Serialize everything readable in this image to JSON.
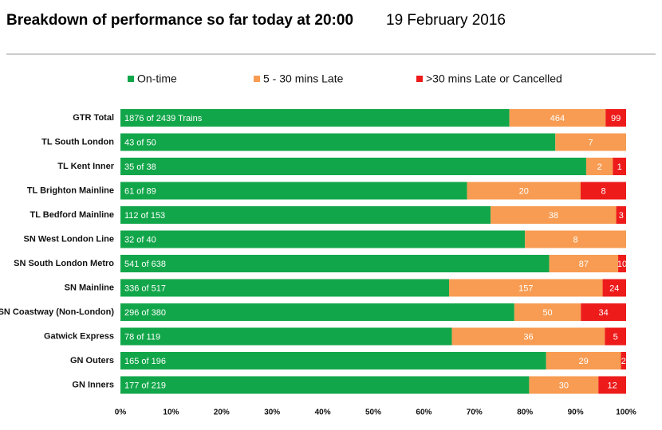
{
  "chart_data": {
    "type": "bar",
    "orientation": "horizontal",
    "stacked": "percent",
    "title": "Breakdown of performance so far today at 20:00",
    "subtitle": "19 February 2016",
    "categories": [
      "GTR Total",
      "TL South London",
      "TL Kent Inner",
      "TL Brighton Mainline",
      "TL Bedford Mainline",
      "SN West London Line",
      "SN South London Metro",
      "SN Mainline",
      "SN Coastway (Non-London)",
      "Gatwick Express",
      "GN Outers",
      "GN Inners"
    ],
    "series": [
      {
        "name": "On-time",
        "color": "#12a64a",
        "values": [
          1876,
          43,
          35,
          61,
          112,
          32,
          541,
          336,
          296,
          78,
          165,
          177
        ],
        "value_labels": [
          "1876 of 2439 Trains",
          "43 of 50",
          "35 of 38",
          "61 of 89",
          "112 of 153",
          "32 of 40",
          "541 of 638",
          "336 of 517",
          "296 of 380",
          "78 of 119",
          "165 of 196",
          "177 of 219"
        ]
      },
      {
        "name": "5 - 30 mins Late",
        "color": "#f79c52",
        "values": [
          464,
          7,
          2,
          20,
          38,
          8,
          87,
          157,
          50,
          36,
          29,
          30
        ]
      },
      {
        "name": ">30 mins Late or Cancelled",
        "color": "#ee1b1b",
        "values": [
          99,
          0,
          1,
          8,
          3,
          0,
          10,
          24,
          34,
          5,
          2,
          12
        ]
      }
    ],
    "xlim": [
      0,
      100
    ],
    "xticks": [
      {
        "value": 0,
        "label": "0%"
      },
      {
        "value": 10,
        "label": "10%"
      },
      {
        "value": 20,
        "label": "20%"
      },
      {
        "value": 30,
        "label": "30%"
      },
      {
        "value": 40,
        "label": "40%"
      },
      {
        "value": 50,
        "label": "50%"
      },
      {
        "value": 60,
        "label": "60%"
      },
      {
        "value": 70,
        "label": "70%"
      },
      {
        "value": 80,
        "label": "80%"
      },
      {
        "value": 90,
        "label": "90%"
      },
      {
        "value": 100,
        "label": "100%"
      }
    ],
    "legend": "top"
  }
}
